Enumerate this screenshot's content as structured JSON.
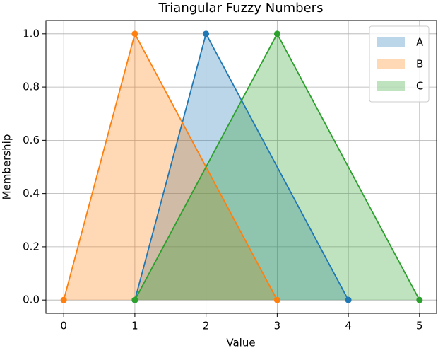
{
  "chart_data": {
    "type": "area-line",
    "title": "Triangular Fuzzy Numbers",
    "x_label": "Value",
    "y_label": "Membership",
    "series": [
      {
        "name": "A",
        "color": "#1f77b4",
        "x": [
          1,
          2,
          4
        ],
        "values": [
          0,
          1,
          0
        ]
      },
      {
        "name": "B",
        "color": "#ff7f0e",
        "x": [
          0,
          1,
          3
        ],
        "values": [
          0,
          1,
          0
        ]
      },
      {
        "name": "C",
        "color": "#2ca02c",
        "x": [
          1,
          3,
          5
        ],
        "values": [
          0,
          1,
          0
        ]
      }
    ],
    "xlim": [
      -0.25,
      5.25
    ],
    "xticks": [
      0,
      1,
      2,
      3,
      4,
      5
    ],
    "ylim": [
      -0.05,
      1.05
    ],
    "yticks": [
      {
        "value": 0,
        "label": "0.0"
      },
      0.2,
      0.4,
      0.6,
      0.8,
      {
        "value": 1,
        "label": "1.0"
      }
    ],
    "grid": true,
    "legend": "upper right",
    "fill_alpha": 0.3
  }
}
